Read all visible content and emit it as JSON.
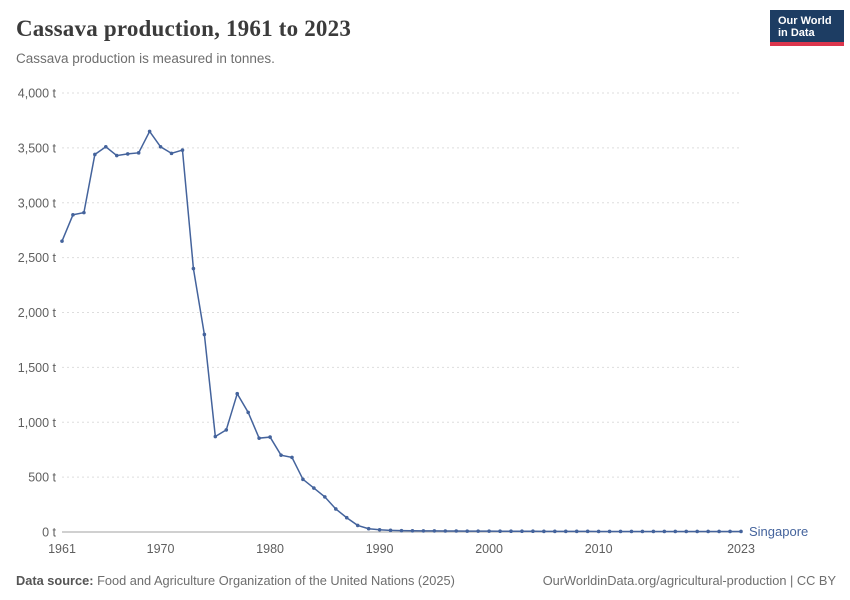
{
  "header": {
    "title": "Cassava production, 1961 to 2023",
    "subtitle": "Cassava production is measured in tonnes.",
    "logo": {
      "line1": "Our World",
      "line2": "in Data"
    }
  },
  "colors": {
    "series": "#44639c",
    "logo_background": "#1d3d63",
    "logo_accent": "#dc354c",
    "gridline": "#dddddd",
    "axis": "#a1a1a1",
    "tick_text": "#5f5f5f"
  },
  "chart_data": {
    "type": "line",
    "title": "Cassava production, 1961 to 2023",
    "subtitle": "Cassava production is measured in tonnes.",
    "ylabel": "tonnes",
    "ylim": [
      0,
      4000
    ],
    "grid": "horizontal-dashed",
    "legend_position": "end-of-line-label",
    "yticks": [
      {
        "value": 0,
        "label": "0 t"
      },
      {
        "value": 500,
        "label": "500 t"
      },
      {
        "value": 1000,
        "label": "1,000 t"
      },
      {
        "value": 1500,
        "label": "1,500 t"
      },
      {
        "value": 2000,
        "label": "2,000 t"
      },
      {
        "value": 2500,
        "label": "2,500 t"
      },
      {
        "value": 3000,
        "label": "3,000 t"
      },
      {
        "value": 3500,
        "label": "3,500 t"
      },
      {
        "value": 4000,
        "label": "4,000 t"
      }
    ],
    "xticks": [
      1961,
      1970,
      1980,
      1990,
      2000,
      2010,
      2023
    ],
    "years": [
      1961,
      1962,
      1963,
      1964,
      1965,
      1966,
      1967,
      1968,
      1969,
      1970,
      1971,
      1972,
      1973,
      1974,
      1975,
      1976,
      1977,
      1978,
      1979,
      1980,
      1981,
      1982,
      1983,
      1984,
      1985,
      1986,
      1987,
      1988,
      1989,
      1990,
      1991,
      1992,
      1993,
      1994,
      1995,
      1996,
      1997,
      1998,
      1999,
      2000,
      2001,
      2002,
      2003,
      2004,
      2005,
      2006,
      2007,
      2008,
      2009,
      2010,
      2011,
      2012,
      2013,
      2014,
      2015,
      2016,
      2017,
      2018,
      2019,
      2020,
      2021,
      2022,
      2023
    ],
    "series": [
      {
        "name": "Singapore",
        "color": "#44639c",
        "values": [
          2650,
          2890,
          2910,
          3440,
          3510,
          3430,
          3445,
          3455,
          3650,
          3510,
          3450,
          3480,
          2400,
          1800,
          870,
          930,
          1260,
          1090,
          855,
          865,
          700,
          680,
          480,
          400,
          320,
          210,
          130,
          60,
          30,
          20,
          15,
          12,
          11,
          10,
          10,
          9,
          9,
          8,
          8,
          8,
          7,
          7,
          7,
          7,
          6,
          6,
          6,
          6,
          6,
          5,
          5,
          5,
          5,
          5,
          5,
          5,
          5,
          5,
          5,
          5,
          5,
          5,
          5
        ]
      }
    ]
  },
  "footer": {
    "source_label": "Data source:",
    "source_text": " Food and Agriculture Organization of the United Nations (2025)",
    "link_text": "OurWorldinData.org/agricultural-production | CC BY"
  }
}
